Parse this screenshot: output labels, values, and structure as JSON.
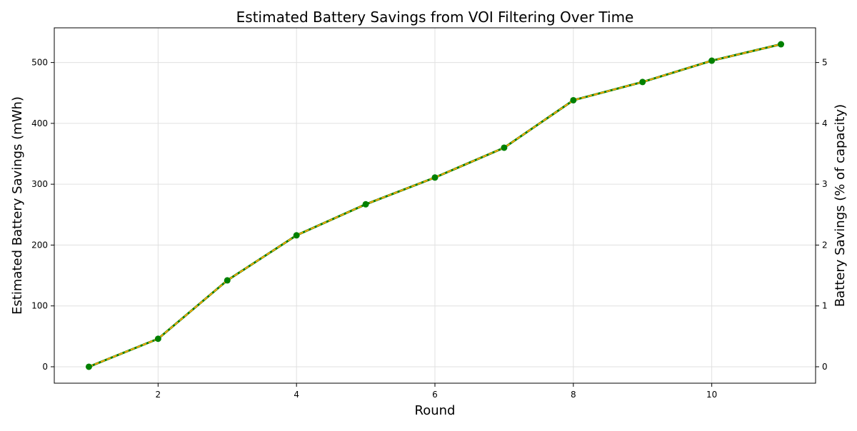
{
  "chart_data": {
    "type": "line",
    "title": "Estimated Battery Savings from VOI Filtering Over Time",
    "xlabel": "Round",
    "ylabel": "Estimated Battery Savings (mWh)",
    "y2label": "Battery Savings (% of capacity)",
    "x": [
      1,
      2,
      3,
      4,
      5,
      6,
      7,
      8,
      9,
      10,
      11
    ],
    "series": [
      {
        "values": [
          0,
          46,
          142,
          216,
          267,
          311,
          360,
          438,
          468,
          503,
          530
        ]
      }
    ],
    "xlim": [
      0.5,
      11.5
    ],
    "ylim": [
      -27,
      557
    ],
    "y2lim": [
      -0.27,
      5.57
    ],
    "xticks": [
      2,
      4,
      6,
      8,
      10
    ],
    "yticks": [
      0,
      100,
      200,
      300,
      400,
      500
    ],
    "y2ticks": [
      0,
      1,
      2,
      3,
      4,
      5
    ],
    "grid": true,
    "colors": {
      "line_primary": "#008000",
      "line_secondary": "#FFA500",
      "marker": "#008000",
      "grid": "#e0e0e0",
      "axes": "#000000"
    }
  }
}
